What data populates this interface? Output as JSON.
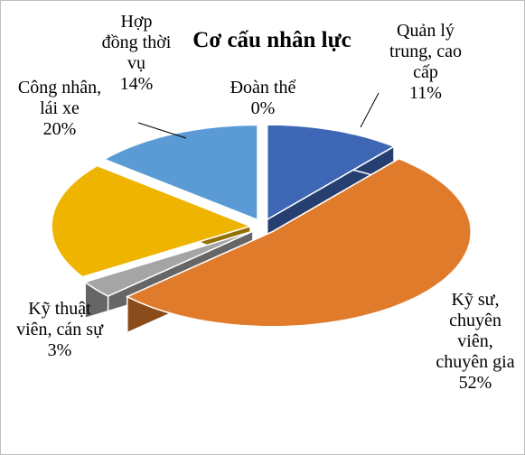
{
  "chart_data": {
    "type": "pie",
    "title": "Cơ cấu nhân lực",
    "categories": [
      "Quản lý trung, cao cấp",
      "Kỹ sư, chuyên viên, chuyên gia",
      "Kỹ thuật viên, cán sự",
      "Công nhân, lái xe",
      "Hợp đồng thời vụ",
      "Đoàn thể"
    ],
    "values": [
      11,
      52,
      3,
      20,
      14,
      0
    ],
    "value_labels": [
      "11%",
      "52%",
      "3%",
      "20%",
      "14%",
      "0%"
    ],
    "colors": [
      "#3d66b4",
      "#e07b2c",
      "#a5a5a5",
      "#efb400",
      "#5b9bd5",
      "#70ad47"
    ]
  }
}
